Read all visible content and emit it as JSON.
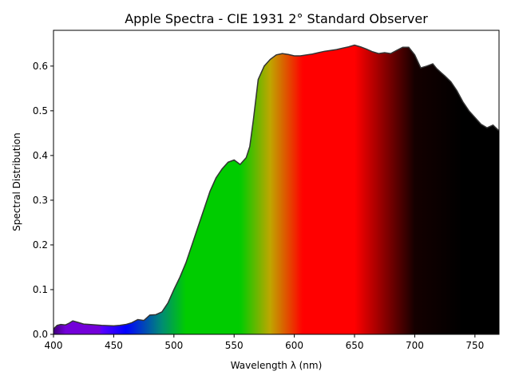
{
  "chart_data": {
    "type": "area",
    "title": "Apple Spectra - CIE 1931 2° Standard Observer",
    "xlabel": "Wavelength λ (nm)",
    "ylabel": "Spectral Distribution",
    "xlim": [
      400,
      770
    ],
    "ylim": [
      0,
      0.68
    ],
    "xticks": [
      400,
      450,
      500,
      550,
      600,
      650,
      700,
      750
    ],
    "yticks": [
      0.0,
      0.1,
      0.2,
      0.3,
      0.4,
      0.5,
      0.6
    ],
    "xtick_labels": [
      "400",
      "450",
      "500",
      "550",
      "600",
      "650",
      "700",
      "750"
    ],
    "ytick_labels": [
      "0.0",
      "0.1",
      "0.2",
      "0.3",
      "0.4",
      "0.5",
      "0.6"
    ],
    "grid": false,
    "fill": "wavelength-colored spectrum",
    "line_color": "#333333",
    "x": [
      400,
      403,
      406,
      410,
      413,
      416,
      420,
      425,
      430,
      440,
      450,
      455,
      460,
      465,
      470,
      475,
      480,
      485,
      490,
      495,
      500,
      505,
      510,
      515,
      520,
      525,
      530,
      535,
      540,
      545,
      550,
      555,
      560,
      563,
      566,
      570,
      575,
      580,
      585,
      590,
      595,
      600,
      605,
      610,
      615,
      620,
      625,
      630,
      635,
      640,
      645,
      650,
      655,
      660,
      665,
      670,
      675,
      680,
      685,
      690,
      695,
      700,
      705,
      710,
      715,
      718,
      722,
      725,
      730,
      735,
      740,
      745,
      750,
      755,
      760,
      765,
      770
    ],
    "y": [
      0.012,
      0.02,
      0.022,
      0.021,
      0.025,
      0.03,
      0.027,
      0.023,
      0.022,
      0.02,
      0.019,
      0.02,
      0.022,
      0.026,
      0.033,
      0.031,
      0.043,
      0.044,
      0.05,
      0.07,
      0.1,
      0.128,
      0.16,
      0.2,
      0.24,
      0.28,
      0.32,
      0.35,
      0.37,
      0.385,
      0.39,
      0.38,
      0.395,
      0.42,
      0.48,
      0.57,
      0.6,
      0.615,
      0.625,
      0.628,
      0.626,
      0.623,
      0.623,
      0.625,
      0.627,
      0.63,
      0.633,
      0.635,
      0.637,
      0.64,
      0.643,
      0.647,
      0.643,
      0.638,
      0.632,
      0.628,
      0.63,
      0.628,
      0.635,
      0.642,
      0.642,
      0.625,
      0.596,
      0.6,
      0.605,
      0.595,
      0.585,
      0.578,
      0.565,
      0.545,
      0.52,
      0.5,
      0.485,
      0.47,
      0.462,
      0.468,
      0.455
    ]
  }
}
